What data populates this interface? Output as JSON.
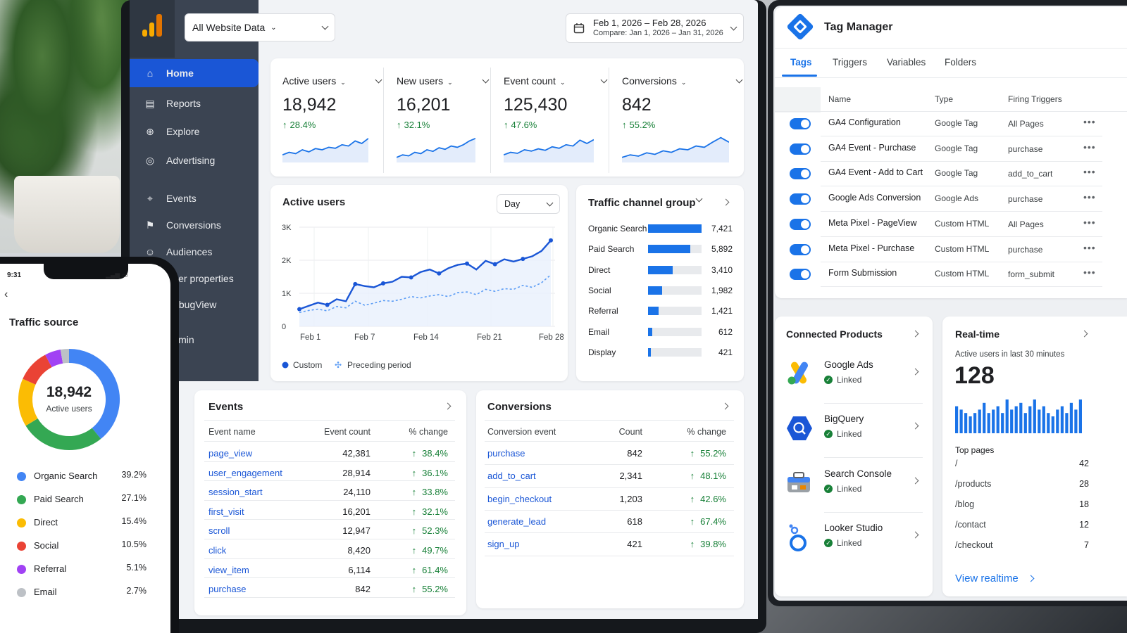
{
  "ga": {
    "property": "All Website Data",
    "date_range": "Feb 1, 2026 – Feb 28, 2026",
    "compare_range": "Compare: Jan 1, 2026 – Jan 31, 2026",
    "sidebar": [
      {
        "label": "Home",
        "icon": "home-icon"
      },
      {
        "label": "Reports",
        "icon": "reports-icon"
      },
      {
        "label": "Explore",
        "icon": "explore-icon"
      },
      {
        "label": "Advertising",
        "icon": "advertising-icon"
      },
      {
        "label": "Events",
        "icon": "pin-icon"
      },
      {
        "label": "Conversions",
        "icon": "flag-icon"
      },
      {
        "label": "Audiences",
        "icon": "people-icon"
      },
      {
        "label": "User properties",
        "icon": "user-icon"
      },
      {
        "label": "DebugView",
        "icon": "debug-icon"
      },
      {
        "label": "Admin",
        "icon": "gear-icon"
      }
    ],
    "kpis": [
      {
        "label": "Active users",
        "value": "18,942",
        "change": "28.4%",
        "spark": [
          3,
          4,
          3.5,
          5,
          4.2,
          5.5,
          5,
          6,
          5.6,
          7,
          6.5,
          8.5,
          7.5,
          9.5
        ]
      },
      {
        "label": "New users",
        "value": "16,201",
        "change": "32.1%",
        "spark": [
          2,
          3,
          2.6,
          4,
          3.5,
          5,
          4.4,
          5.8,
          5.2,
          6.5,
          6,
          7,
          8.5,
          9.5
        ]
      },
      {
        "label": "Event count",
        "value": "125,430",
        "change": "47.6%",
        "spark": [
          3,
          4,
          3.6,
          5,
          4.5,
          5.4,
          4.8,
          6.2,
          5.6,
          7,
          6.5,
          8.8,
          7.5,
          9
        ]
      },
      {
        "label": "Conversions",
        "value": "842",
        "change": "55.2%",
        "spark": [
          2,
          3,
          2.5,
          3.8,
          3.2,
          4.6,
          4,
          5.4,
          5,
          6.5,
          6,
          8,
          9.8,
          8
        ]
      }
    ],
    "active_users_chart": {
      "title": "Active users",
      "granularity": "Day",
      "y_ticks": [
        "3K",
        "2K",
        "1K",
        "0"
      ],
      "x_ticks": [
        "Feb 1",
        "Feb 7",
        "Feb 14",
        "Feb 21",
        "Feb 28"
      ],
      "ylim": [
        0,
        3000
      ],
      "custom": [
        520,
        620,
        720,
        650,
        820,
        760,
        1280,
        1220,
        1180,
        1300,
        1350,
        1500,
        1480,
        1640,
        1720,
        1600,
        1760,
        1860,
        1900,
        1720,
        1980,
        1880,
        2030,
        1960,
        2040,
        2120,
        2280,
        2600
      ],
      "preceding": [
        420,
        480,
        520,
        470,
        600,
        560,
        760,
        640,
        700,
        780,
        760,
        820,
        900,
        860,
        920,
        960,
        900,
        1020,
        1040,
        960,
        1120,
        1060,
        1140,
        1120,
        1240,
        1180,
        1320,
        1560
      ],
      "legend": [
        "Custom",
        "Preceding period"
      ]
    },
    "traffic_channels": {
      "title": "Traffic channel group",
      "rows": [
        {
          "name": "Organic Search",
          "value": "7,421",
          "n": 7421
        },
        {
          "name": "Paid Search",
          "value": "5,892",
          "n": 5892
        },
        {
          "name": "Direct",
          "value": "3,410",
          "n": 3410
        },
        {
          "name": "Social",
          "value": "1,982",
          "n": 1982
        },
        {
          "name": "Referral",
          "value": "1,421",
          "n": 1421
        },
        {
          "name": "Email",
          "value": "612",
          "n": 612
        },
        {
          "name": "Display",
          "value": "421",
          "n": 421
        }
      ]
    },
    "events": {
      "title": "Events",
      "headers": [
        "Event name",
        "Event count",
        "% change"
      ],
      "rows": [
        {
          "name": "page_view",
          "count": "42,381",
          "change": "38.4%"
        },
        {
          "name": "user_engagement",
          "count": "28,914",
          "change": "36.1%"
        },
        {
          "name": "session_start",
          "count": "24,110",
          "change": "33.8%"
        },
        {
          "name": "first_visit",
          "count": "16,201",
          "change": "32.1%"
        },
        {
          "name": "scroll",
          "count": "12,947",
          "change": "52.3%"
        },
        {
          "name": "click",
          "count": "8,420",
          "change": "49.7%"
        },
        {
          "name": "view_item",
          "count": "6,114",
          "change": "61.4%"
        },
        {
          "name": "purchase",
          "count": "842",
          "change": "55.2%"
        }
      ]
    },
    "conversions": {
      "title": "Conversions",
      "headers": [
        "Conversion event",
        "Count",
        "% change"
      ],
      "rows": [
        {
          "name": "purchase",
          "count": "842",
          "change": "55.2%"
        },
        {
          "name": "add_to_cart",
          "count": "2,341",
          "change": "48.1%"
        },
        {
          "name": "begin_checkout",
          "count": "1,203",
          "change": "42.6%"
        },
        {
          "name": "generate_lead",
          "count": "618",
          "change": "67.4%"
        },
        {
          "name": "sign_up",
          "count": "421",
          "change": "39.8%"
        }
      ]
    }
  },
  "gtm": {
    "title": "Tag Manager",
    "tabs": [
      "Tags",
      "Triggers",
      "Variables",
      "Folders"
    ],
    "headers": [
      "Name",
      "Type",
      "Firing Triggers"
    ],
    "tags": [
      {
        "name": "GA4 Configuration",
        "type": "Google Tag",
        "trigger": "All Pages"
      },
      {
        "name": "GA4 Event - Purchase",
        "type": "Google Tag",
        "trigger": "purchase"
      },
      {
        "name": "GA4 Event - Add to Cart",
        "type": "Google Tag",
        "trigger": "add_to_cart"
      },
      {
        "name": "Google Ads Conversion",
        "type": "Google Ads",
        "trigger": "purchase"
      },
      {
        "name": "Meta Pixel - PageView",
        "type": "Custom HTML",
        "trigger": "All Pages"
      },
      {
        "name": "Meta Pixel - Purchase",
        "type": "Custom HTML",
        "trigger": "purchase"
      },
      {
        "name": "Form Submission",
        "type": "Custom HTML",
        "trigger": "form_submit"
      }
    ],
    "connected": {
      "title": "Connected Products",
      "items": [
        {
          "name": "Google Ads",
          "status": "Linked"
        },
        {
          "name": "BigQuery",
          "status": "Linked"
        },
        {
          "name": "Search Console",
          "status": "Linked"
        },
        {
          "name": "Looker Studio",
          "status": "Linked"
        }
      ]
    },
    "realtime": {
      "title": "Real-time",
      "subtitle": "Active users in last 30 minutes",
      "value": "128",
      "bars": [
        8,
        7,
        6,
        5,
        6,
        7,
        9,
        6,
        7,
        8,
        6,
        10,
        7,
        8,
        9,
        6,
        8,
        10,
        7,
        8,
        6,
        5,
        7,
        8,
        6,
        9,
        7,
        10
      ],
      "top_pages_label": "Top pages",
      "pages": [
        {
          "path": "/",
          "count": "42"
        },
        {
          "path": "/products",
          "count": "28"
        },
        {
          "path": "/blog",
          "count": "18"
        },
        {
          "path": "/contact",
          "count": "12"
        },
        {
          "path": "/checkout",
          "count": "7"
        }
      ],
      "link": "View realtime"
    }
  },
  "phone": {
    "time": "9:31",
    "title": "Traffic source",
    "total": "18,942",
    "total_label": "Active users",
    "sources": [
      {
        "name": "Organic Search",
        "pct": "39.2%",
        "v": 39.2,
        "color": "#4285f4"
      },
      {
        "name": "Paid Search",
        "pct": "27.1%",
        "v": 27.1,
        "color": "#34a853"
      },
      {
        "name": "Direct",
        "pct": "15.4%",
        "v": 15.4,
        "color": "#fbbc04"
      },
      {
        "name": "Social",
        "pct": "10.5%",
        "v": 10.5,
        "color": "#ea4335"
      },
      {
        "name": "Referral",
        "pct": "5.1%",
        "v": 5.1,
        "color": "#a142f4"
      },
      {
        "name": "Email",
        "pct": "2.7%",
        "v": 2.7,
        "color": "#bdc1c6"
      }
    ]
  },
  "colors": {
    "accent": "#1a73e8",
    "sidebar": "#3b4452",
    "positive": "#188038"
  }
}
